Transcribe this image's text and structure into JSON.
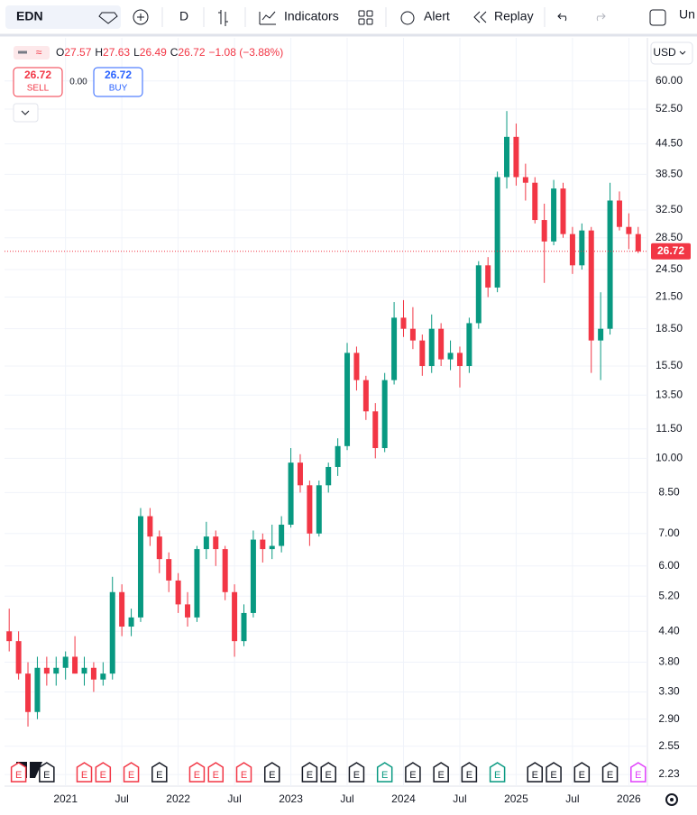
{
  "toolbar": {
    "symbol": "EDN",
    "interval": "D",
    "indicators": "Indicators",
    "alert": "Alert",
    "replay": "Replay",
    "layout": "Un"
  },
  "legend": {
    "open_label": "O",
    "open": "27.57",
    "high_label": "H",
    "high": "27.63",
    "low_label": "L",
    "low": "26.49",
    "close_label": "C",
    "close": "26.72",
    "change": "−1.08 (−3.88%)"
  },
  "trade": {
    "sell_price": "26.72",
    "sell": "SELL",
    "spread": "0.00",
    "buy_price": "26.72",
    "buy": "BUY"
  },
  "currency": "USD",
  "chart_data": {
    "type": "candlestick",
    "log_scale": true,
    "grid": true,
    "up_color": "#089981",
    "down_color": "#f23645",
    "categories": [
      "2020-07",
      "2020-08",
      "2020-09",
      "2020-10",
      "2020-11",
      "2020-12",
      "2021-01",
      "2021-02",
      "2021-03",
      "2021-04",
      "2021-05",
      "2021-06",
      "2021-07",
      "2021-08",
      "2021-09",
      "2021-10",
      "2021-11",
      "2021-12",
      "2022-01",
      "2022-02",
      "2022-03",
      "2022-04",
      "2022-05",
      "2022-06",
      "2022-07",
      "2022-08",
      "2022-09",
      "2022-10",
      "2022-11",
      "2022-12",
      "2023-01",
      "2023-02",
      "2023-03",
      "2023-04",
      "2023-05",
      "2023-06",
      "2023-07",
      "2023-08",
      "2023-09",
      "2023-10",
      "2023-11",
      "2023-12",
      "2024-01",
      "2024-02",
      "2024-03",
      "2024-04",
      "2024-05",
      "2024-06",
      "2024-07",
      "2024-08",
      "2024-09",
      "2024-10",
      "2024-11",
      "2024-12",
      "2025-01",
      "2025-02",
      "2025-03",
      "2025-04",
      "2025-05",
      "2025-06",
      "2025-07",
      "2025-08",
      "2025-09",
      "2025-10",
      "2025-11",
      "2025-12",
      "2026-01",
      "2026-02"
    ],
    "open": [
      4.4,
      4.2,
      3.6,
      3.0,
      3.7,
      3.6,
      3.7,
      3.9,
      3.6,
      3.7,
      3.5,
      3.6,
      5.3,
      4.5,
      4.7,
      7.6,
      6.9,
      6.2,
      5.6,
      5.0,
      4.7,
      6.5,
      6.9,
      6.5,
      5.3,
      4.2,
      4.8,
      6.8,
      6.5,
      6.6,
      7.3,
      9.8,
      8.8,
      7.0,
      8.8,
      9.6,
      10.6,
      16.5,
      14.5,
      12.5,
      10.5,
      14.5,
      19.5,
      18.5,
      17.5,
      15.5,
      18.5,
      16.0,
      16.5,
      15.5,
      19.0,
      25.0,
      22.5,
      38.0,
      46.0,
      38.0,
      37.0,
      31.0,
      28.0,
      36.0,
      29.0,
      25.0,
      29.5,
      17.5,
      18.5,
      34.0,
      30.0,
      29.0
    ],
    "high": [
      4.9,
      4.4,
      3.8,
      3.9,
      3.9,
      3.9,
      4.0,
      4.3,
      3.9,
      3.8,
      3.8,
      5.7,
      5.5,
      4.9,
      7.9,
      7.9,
      7.1,
      6.4,
      5.8,
      5.3,
      6.6,
      7.4,
      7.1,
      6.6,
      5.5,
      5.0,
      7.1,
      7.0,
      7.3,
      7.6,
      10.5,
      10.2,
      9.0,
      9.0,
      9.8,
      11.0,
      17.3,
      17.0,
      14.8,
      13.0,
      15.0,
      21.0,
      21.2,
      20.5,
      18.0,
      19.8,
      19.0,
      17.5,
      17.0,
      19.5,
      25.5,
      26.0,
      39.0,
      52.0,
      49.0,
      40.5,
      38.0,
      33.5,
      37.5,
      37.0,
      30.0,
      30.5,
      30.0,
      22.0,
      37.0,
      35.5,
      32.0,
      30.0
    ],
    "low": [
      4.0,
      3.5,
      2.8,
      2.9,
      3.4,
      3.4,
      3.5,
      3.6,
      3.4,
      3.3,
      3.4,
      3.5,
      4.3,
      4.3,
      4.6,
      6.6,
      5.8,
      5.3,
      4.8,
      4.5,
      4.6,
      6.2,
      6.0,
      5.1,
      3.9,
      4.1,
      4.7,
      6.1,
      6.2,
      6.4,
      7.2,
      8.5,
      6.6,
      6.9,
      8.5,
      9.2,
      10.4,
      13.8,
      12.0,
      10.0,
      10.3,
      14.2,
      17.8,
      16.8,
      14.8,
      15.0,
      15.5,
      15.2,
      14.0,
      15.0,
      18.5,
      21.5,
      22.0,
      36.0,
      36.5,
      34.0,
      30.5,
      23.0,
      27.5,
      28.5,
      24.0,
      24.5,
      15.0,
      14.5,
      18.0,
      29.5,
      27.0,
      26.49
    ],
    "close": [
      4.2,
      3.6,
      3.0,
      3.7,
      3.6,
      3.7,
      3.9,
      3.6,
      3.7,
      3.5,
      3.6,
      5.3,
      4.5,
      4.7,
      7.6,
      6.9,
      6.2,
      5.6,
      5.0,
      4.7,
      6.5,
      6.9,
      6.5,
      5.3,
      4.2,
      4.8,
      6.8,
      6.5,
      6.6,
      7.3,
      9.8,
      8.8,
      7.0,
      8.8,
      9.6,
      10.6,
      16.5,
      14.5,
      12.5,
      10.5,
      14.5,
      19.5,
      18.5,
      17.5,
      15.5,
      18.5,
      16.0,
      16.5,
      15.5,
      19.0,
      25.0,
      22.5,
      38.0,
      46.0,
      38.0,
      37.0,
      31.0,
      28.0,
      36.0,
      29.0,
      25.0,
      29.5,
      17.5,
      18.5,
      34.0,
      30.0,
      29.0,
      26.72
    ],
    "last_price": 26.72,
    "last_price_label": "26.72",
    "last_price_color": "#f23645",
    "ylim": [
      2.11,
      73.6
    ],
    "yticks": [
      {
        "value": 60,
        "label": "60.00"
      },
      {
        "value": 52.5,
        "label": "52.50"
      },
      {
        "value": 44.5,
        "label": "44.50"
      },
      {
        "value": 38.5,
        "label": "38.50"
      },
      {
        "value": 32.5,
        "label": "32.50"
      },
      {
        "value": 28.5,
        "label": "28.50"
      },
      {
        "value": 24.5,
        "label": "24.50"
      },
      {
        "value": 21.5,
        "label": "21.50"
      },
      {
        "value": 18.5,
        "label": "18.50"
      },
      {
        "value": 15.5,
        "label": "15.50"
      },
      {
        "value": 13.5,
        "label": "13.50"
      },
      {
        "value": 11.5,
        "label": "11.50"
      },
      {
        "value": 10,
        "label": "10.00"
      },
      {
        "value": 8.5,
        "label": "8.50"
      },
      {
        "value": 7,
        "label": "7.00"
      },
      {
        "value": 6,
        "label": "6.00"
      },
      {
        "value": 5.2,
        "label": "5.20"
      },
      {
        "value": 4.4,
        "label": "4.40"
      },
      {
        "value": 3.8,
        "label": "3.80"
      },
      {
        "value": 3.3,
        "label": "3.30"
      },
      {
        "value": 2.9,
        "label": "2.90"
      },
      {
        "value": 2.55,
        "label": "2.55"
      },
      {
        "value": 2.23,
        "label": "2.23"
      }
    ],
    "xticks": [
      {
        "value": "2021-01",
        "label": "2021"
      },
      {
        "value": "2021-07",
        "label": "Jul"
      },
      {
        "value": "2022-01",
        "label": "2022"
      },
      {
        "value": "2022-07",
        "label": "Jul"
      },
      {
        "value": "2023-01",
        "label": "2023"
      },
      {
        "value": "2023-07",
        "label": "Jul"
      },
      {
        "value": "2024-01",
        "label": "2024"
      },
      {
        "value": "2024-07",
        "label": "Jul"
      },
      {
        "value": "2025-01",
        "label": "2025"
      },
      {
        "value": "2025-07",
        "label": "Jul"
      },
      {
        "value": "2026-01",
        "label": "2026"
      }
    ],
    "earnings": [
      {
        "x": "2020-08",
        "label": "E",
        "color": "#f23645"
      },
      {
        "x": "2020-11",
        "label": "E",
        "color": "#131722"
      },
      {
        "x": "2021-03",
        "label": "E",
        "color": "#f23645"
      },
      {
        "x": "2021-05",
        "label": "E",
        "color": "#f23645"
      },
      {
        "x": "2021-08",
        "label": "E",
        "color": "#f23645"
      },
      {
        "x": "2021-11",
        "label": "E",
        "color": "#131722"
      },
      {
        "x": "2022-03",
        "label": "E",
        "color": "#f23645"
      },
      {
        "x": "2022-05",
        "label": "E",
        "color": "#f23645"
      },
      {
        "x": "2022-08",
        "label": "E",
        "color": "#f23645"
      },
      {
        "x": "2022-11",
        "label": "E",
        "color": "#131722"
      },
      {
        "x": "2023-03",
        "label": "E",
        "color": "#131722"
      },
      {
        "x": "2023-05",
        "label": "E",
        "color": "#131722"
      },
      {
        "x": "2023-08",
        "label": "E",
        "color": "#131722"
      },
      {
        "x": "2023-11",
        "label": "E",
        "color": "#089981"
      },
      {
        "x": "2024-02",
        "label": "E",
        "color": "#131722"
      },
      {
        "x": "2024-05",
        "label": "E",
        "color": "#131722"
      },
      {
        "x": "2024-08",
        "label": "E",
        "color": "#131722"
      },
      {
        "x": "2024-11",
        "label": "E",
        "color": "#089981"
      },
      {
        "x": "2025-03",
        "label": "E",
        "color": "#131722"
      },
      {
        "x": "2025-05",
        "label": "E",
        "color": "#131722"
      },
      {
        "x": "2025-08",
        "label": "E",
        "color": "#131722"
      },
      {
        "x": "2025-11",
        "label": "E",
        "color": "#131722"
      },
      {
        "x": "2026-02",
        "label": "E",
        "color": "#e040fb"
      }
    ]
  }
}
